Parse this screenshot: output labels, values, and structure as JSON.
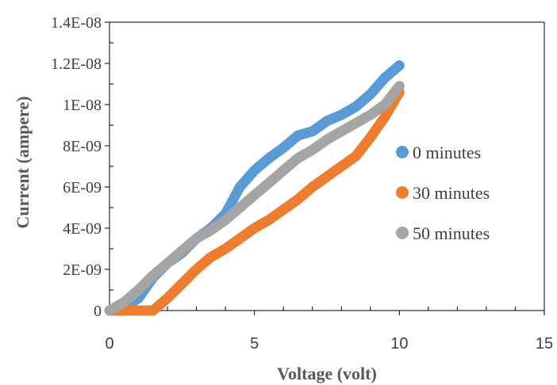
{
  "chart_data": {
    "type": "scatter",
    "xlabel": "Voltage (volt)",
    "ylabel": "Current (ampere)",
    "xlim": [
      0,
      15
    ],
    "ylim": [
      0,
      1.4e-08
    ],
    "xticks": [
      "0",
      "5",
      "10",
      "15"
    ],
    "yticks": [
      "0",
      "2E-09",
      "4E-09",
      "6E-09",
      "8E-09",
      "1E-08",
      "1.2E-08",
      "1.4E-08"
    ],
    "grid": false,
    "legend_position": "right",
    "series": [
      {
        "name": "0 minutes",
        "color": "#5B9BD5",
        "points": [
          [
            0,
            0
          ],
          [
            0.5,
            1.5e-10
          ],
          [
            1.0,
            6e-10
          ],
          [
            1.5,
            1.6e-09
          ],
          [
            2.0,
            2.3e-09
          ],
          [
            2.5,
            2.8e-09
          ],
          [
            3.0,
            3.5e-09
          ],
          [
            3.5,
            4e-09
          ],
          [
            4.0,
            4.7e-09
          ],
          [
            4.5,
            6e-09
          ],
          [
            5.0,
            6.8e-09
          ],
          [
            5.5,
            7.4e-09
          ],
          [
            6.0,
            7.9e-09
          ],
          [
            6.5,
            8.5e-09
          ],
          [
            7.0,
            8.7e-09
          ],
          [
            7.5,
            9.2e-09
          ],
          [
            8.0,
            9.5e-09
          ],
          [
            8.5,
            9.9e-09
          ],
          [
            9.0,
            1.05e-08
          ],
          [
            9.5,
            1.13e-08
          ],
          [
            10.0,
            1.19e-08
          ]
        ]
      },
      {
        "name": "30 minutes",
        "color": "#ED7D31",
        "points": [
          [
            0,
            0
          ],
          [
            0.5,
            0
          ],
          [
            1.0,
            0
          ],
          [
            1.5,
            0
          ],
          [
            2.0,
            6e-10
          ],
          [
            2.5,
            1.3e-09
          ],
          [
            3.0,
            2e-09
          ],
          [
            3.5,
            2.6e-09
          ],
          [
            4.0,
            3e-09
          ],
          [
            4.5,
            3.5e-09
          ],
          [
            5.0,
            4e-09
          ],
          [
            5.5,
            4.4e-09
          ],
          [
            6.0,
            4.9e-09
          ],
          [
            6.5,
            5.4e-09
          ],
          [
            7.0,
            6e-09
          ],
          [
            7.5,
            6.5e-09
          ],
          [
            8.0,
            7e-09
          ],
          [
            8.5,
            7.5e-09
          ],
          [
            9.0,
            8.4e-09
          ],
          [
            9.5,
            9.4e-09
          ],
          [
            10.0,
            1.06e-08
          ]
        ]
      },
      {
        "name": "50 minutes",
        "color": "#A5A5A5",
        "points": [
          [
            0,
            0
          ],
          [
            0.5,
            4e-10
          ],
          [
            1.0,
            1e-09
          ],
          [
            1.5,
            1.7e-09
          ],
          [
            2.0,
            2.3e-09
          ],
          [
            2.5,
            2.9e-09
          ],
          [
            3.0,
            3.5e-09
          ],
          [
            3.5,
            3.9e-09
          ],
          [
            4.0,
            4.4e-09
          ],
          [
            4.5,
            5e-09
          ],
          [
            5.0,
            5.6e-09
          ],
          [
            5.5,
            6.2e-09
          ],
          [
            6.0,
            6.8e-09
          ],
          [
            6.5,
            7.4e-09
          ],
          [
            7.0,
            7.8e-09
          ],
          [
            7.5,
            8.3e-09
          ],
          [
            8.0,
            8.7e-09
          ],
          [
            8.5,
            9.1e-09
          ],
          [
            9.0,
            9.5e-09
          ],
          [
            9.5,
            1e-08
          ],
          [
            10.0,
            1.09e-08
          ]
        ]
      }
    ]
  }
}
